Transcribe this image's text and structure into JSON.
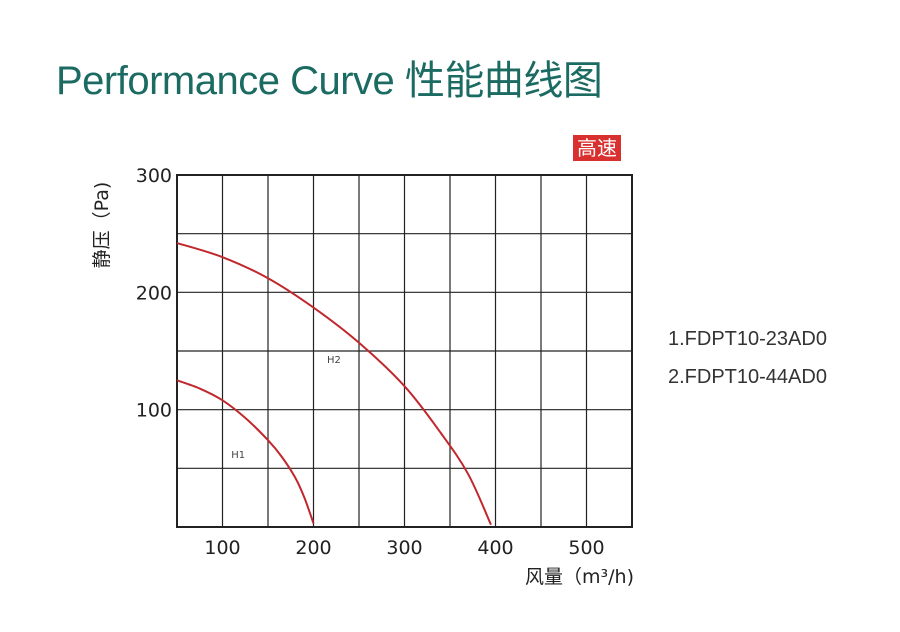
{
  "title": "Performance Curve 性能曲线图",
  "badge": "高速",
  "legend": [
    "1.FDPT10-23AD0",
    "2.FDPT10-44AD0"
  ],
  "colors": {
    "title": "#1b6b63",
    "curve": "#c0282d",
    "badge_bg": "#d8302f",
    "grid": "#222222"
  },
  "chart_data": {
    "type": "line",
    "xlabel": "风量（m³/h)",
    "ylabel": "静压（Pa)",
    "xlim": [
      50,
      550
    ],
    "ylim": [
      0,
      300
    ],
    "x_ticks": [
      100,
      200,
      300,
      400,
      500
    ],
    "y_ticks": [
      100,
      200,
      300
    ],
    "grid": true,
    "series": [
      {
        "name": "H1",
        "points": [
          [
            50,
            125
          ],
          [
            75,
            118
          ],
          [
            100,
            108
          ],
          [
            125,
            93
          ],
          [
            150,
            74
          ],
          [
            165,
            60
          ],
          [
            180,
            42
          ],
          [
            190,
            25
          ],
          [
            200,
            3
          ]
        ]
      },
      {
        "name": "H2",
        "points": [
          [
            50,
            242
          ],
          [
            100,
            230
          ],
          [
            150,
            212
          ],
          [
            200,
            187
          ],
          [
            250,
            157
          ],
          [
            300,
            120
          ],
          [
            340,
            80
          ],
          [
            370,
            45
          ],
          [
            395,
            2
          ]
        ]
      }
    ]
  }
}
